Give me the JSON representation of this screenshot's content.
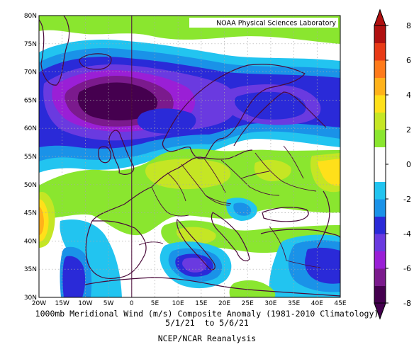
{
  "map": {
    "credit": "NOAA Physical Sciences Laboratory",
    "lat_ticks": [
      "80N",
      "75N",
      "70N",
      "65N",
      "60N",
      "55N",
      "50N",
      "45N",
      "40N",
      "35N",
      "30N"
    ],
    "lon_ticks": [
      "20W",
      "15W",
      "10W",
      "5W",
      "0",
      "5E",
      "10E",
      "15E",
      "20E",
      "25E",
      "30E",
      "35E",
      "40E",
      "45E"
    ],
    "grid": true,
    "region": "Europe / North Atlantic",
    "lon_range": [
      "20W",
      "45E"
    ],
    "lat_range": [
      "30N",
      "80N"
    ]
  },
  "colorbar": {
    "levels": [
      "-8",
      "-6",
      "-4",
      "-2",
      "0",
      "2",
      "4",
      "6",
      "8"
    ],
    "colors": [
      "#45004f",
      "#7b1a8d",
      "#9a1fd6",
      "#6a3ae0",
      "#2a2ad8",
      "#1a92e8",
      "#22c4f0",
      "#ffffff",
      "#ffffff",
      "#8ae62f",
      "#c5e624",
      "#ffe01a",
      "#ffb21a",
      "#ff7a1a",
      "#e83a16",
      "#b01010"
    ]
  },
  "caption": {
    "line1": "1000mb Meridional Wind (m/s) Composite Anomaly (1981-2010 Climatology)",
    "line2": "5/1/21  to 5/6/21",
    "line3": "NCEP/NCAR Reanalysis"
  }
}
